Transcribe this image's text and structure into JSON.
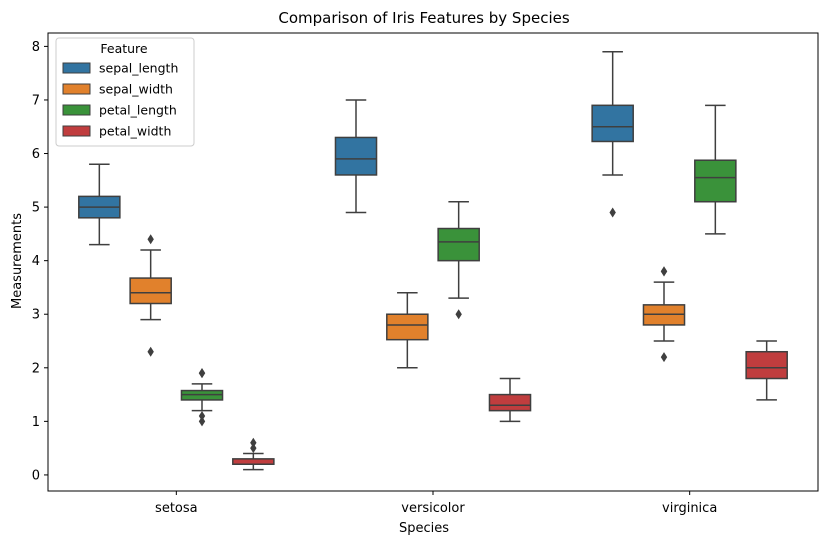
{
  "chart_data": {
    "type": "box",
    "title": "Comparison of Iris Features by Species",
    "xlabel": "Species",
    "ylabel": "Measurements",
    "categories": [
      "setosa",
      "versicolor",
      "virginica"
    ],
    "ylim": [
      -0.3,
      8.25
    ],
    "yticks": [
      0,
      1,
      2,
      3,
      4,
      5,
      6,
      7,
      8
    ],
    "grid": false,
    "legend": {
      "title": "Feature",
      "placement": "top-left"
    },
    "series": [
      {
        "name": "sepal_length",
        "color": "#3274a1",
        "boxes": [
          {
            "category": "setosa",
            "whisker_low": 4.3,
            "q1": 4.8,
            "median": 5.0,
            "q3": 5.2,
            "whisker_high": 5.8,
            "outliers": []
          },
          {
            "category": "versicolor",
            "whisker_low": 4.9,
            "q1": 5.6,
            "median": 5.9,
            "q3": 6.3,
            "whisker_high": 7.0,
            "outliers": []
          },
          {
            "category": "virginica",
            "whisker_low": 5.6,
            "q1": 6.225,
            "median": 6.5,
            "q3": 6.9,
            "whisker_high": 7.9,
            "outliers": [
              4.9
            ]
          }
        ]
      },
      {
        "name": "sepal_width",
        "color": "#e1812c",
        "boxes": [
          {
            "category": "setosa",
            "whisker_low": 2.9,
            "q1": 3.2,
            "median": 3.4,
            "q3": 3.675,
            "whisker_high": 4.2,
            "outliers": [
              2.3,
              4.4
            ]
          },
          {
            "category": "versicolor",
            "whisker_low": 2.0,
            "q1": 2.525,
            "median": 2.8,
            "q3": 3.0,
            "whisker_high": 3.4,
            "outliers": []
          },
          {
            "category": "virginica",
            "whisker_low": 2.5,
            "q1": 2.8,
            "median": 3.0,
            "q3": 3.175,
            "whisker_high": 3.6,
            "outliers": [
              2.2,
              3.8,
              3.8
            ]
          }
        ]
      },
      {
        "name": "petal_length",
        "color": "#3a923a",
        "boxes": [
          {
            "category": "setosa",
            "whisker_low": 1.2,
            "q1": 1.4,
            "median": 1.5,
            "q3": 1.575,
            "whisker_high": 1.7,
            "outliers": [
              1.0,
              1.1,
              1.9,
              1.9
            ]
          },
          {
            "category": "versicolor",
            "whisker_low": 3.3,
            "q1": 4.0,
            "median": 4.35,
            "q3": 4.6,
            "whisker_high": 5.1,
            "outliers": [
              3.0
            ]
          },
          {
            "category": "virginica",
            "whisker_low": 4.5,
            "q1": 5.1,
            "median": 5.55,
            "q3": 5.875,
            "whisker_high": 6.9,
            "outliers": []
          }
        ]
      },
      {
        "name": "petal_width",
        "color": "#c03d3e",
        "boxes": [
          {
            "category": "setosa",
            "whisker_low": 0.1,
            "q1": 0.2,
            "median": 0.2,
            "q3": 0.3,
            "whisker_high": 0.4,
            "outliers": [
              0.5,
              0.6
            ]
          },
          {
            "category": "versicolor",
            "whisker_low": 1.0,
            "q1": 1.2,
            "median": 1.3,
            "q3": 1.5,
            "whisker_high": 1.8,
            "outliers": []
          },
          {
            "category": "virginica",
            "whisker_low": 1.4,
            "q1": 1.8,
            "median": 2.0,
            "q3": 2.3,
            "whisker_high": 2.5,
            "outliers": []
          }
        ]
      }
    ]
  }
}
